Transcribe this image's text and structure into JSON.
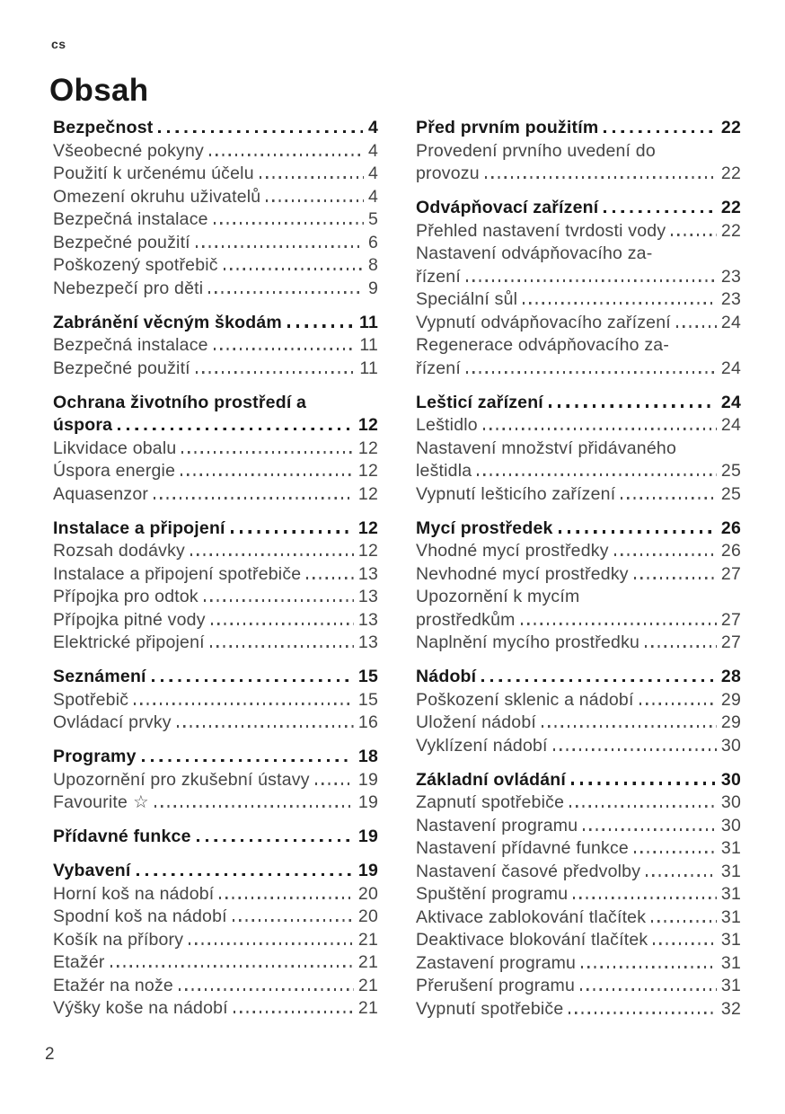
{
  "header": {
    "language_code": "cs",
    "title": "Obsah"
  },
  "footer": {
    "page_number": "2"
  },
  "colors": {
    "background": "#ffffff",
    "text_primary": "#171717",
    "text_secondary": "#454545"
  },
  "toc": {
    "columns": [
      {
        "sections": [
          {
            "title": "Bezpečnost",
            "page": "4",
            "items": [
              {
                "label": "Všeobecné pokyny",
                "page": "4"
              },
              {
                "label": "Použití k určenému účelu",
                "page": "4"
              },
              {
                "label": "Omezení okruhu uživatelů",
                "page": "4"
              },
              {
                "label": "Bezpečná instalace",
                "page": "5"
              },
              {
                "label": "Bezpečné použití",
                "page": "6"
              },
              {
                "label": "Poškozený spotřebič",
                "page": "8"
              },
              {
                "label": "Nebezpečí pro děti",
                "page": "9"
              }
            ]
          },
          {
            "title": "Zabránění věcným škodám",
            "page": "11",
            "items": [
              {
                "label": "Bezpečná instalace",
                "page": "11"
              },
              {
                "label": "Bezpečné použití",
                "page": "11"
              }
            ]
          },
          {
            "title": "Ochrana životního prostředí a",
            "title2": "úspora",
            "page": "12",
            "items": [
              {
                "label": "Likvidace obalu",
                "page": "12"
              },
              {
                "label": "Úspora energie",
                "page": "12"
              },
              {
                "label": "Aquasenzor",
                "page": "12"
              }
            ]
          },
          {
            "title": "Instalace a připojení",
            "page": "12",
            "items": [
              {
                "label": "Rozsah dodávky",
                "page": "12"
              },
              {
                "label": "Instalace a připojení spotřebiče",
                "page": "13"
              },
              {
                "label": "Přípojka pro odtok",
                "page": "13"
              },
              {
                "label": "Přípojka pitné vody",
                "page": "13"
              },
              {
                "label": "Elektrické připojení",
                "page": "13"
              }
            ]
          },
          {
            "title": "Seznámení",
            "page": "15",
            "items": [
              {
                "label": "Spotřebič",
                "page": "15"
              },
              {
                "label": "Ovládací prvky",
                "page": "16"
              }
            ]
          },
          {
            "title": "Programy",
            "page": "18",
            "items": [
              {
                "label": "Upozornění pro zkušební ústavy",
                "page": "19"
              },
              {
                "label": "Favourite",
                "icon": "☆",
                "icon_name": "star-icon",
                "page": "19"
              }
            ]
          },
          {
            "title": "Přídavné funkce",
            "page": "19",
            "items": []
          },
          {
            "title": "Vybavení",
            "page": "19",
            "items": [
              {
                "label": "Horní koš na nádobí",
                "page": "20"
              },
              {
                "label": "Spodní koš na nádobí",
                "page": "20"
              },
              {
                "label": "Košík na příbory",
                "page": "21"
              },
              {
                "label": "Etažér",
                "page": "21"
              },
              {
                "label": "Etažér na nože",
                "page": "21"
              },
              {
                "label": "Výšky koše na nádobí",
                "page": "21"
              }
            ]
          }
        ]
      },
      {
        "sections": [
          {
            "title": "Před prvním použitím",
            "page": "22",
            "items": [
              {
                "label": "Provedení prvního uvedení do",
                "label2": "provozu",
                "page": "22"
              }
            ]
          },
          {
            "title": "Odvápňovací zařízení",
            "page": "22",
            "items": [
              {
                "label": "Přehled nastavení tvrdosti vody",
                "page": "22"
              },
              {
                "label": "Nastavení odvápňovacího za-",
                "label2": "řízení",
                "page": "23"
              },
              {
                "label": "Speciální sůl",
                "page": "23"
              },
              {
                "label": "Vypnutí odvápňovacího zařízení",
                "page": "24"
              },
              {
                "label": "Regenerace odvápňovacího za-",
                "label2": "řízení",
                "page": "24"
              }
            ]
          },
          {
            "title": "Lešticí zařízení",
            "page": "24",
            "items": [
              {
                "label": "Leštidlo",
                "page": "24"
              },
              {
                "label": "Nastavení množství přidávaného",
                "label2": "leštidla",
                "page": "25"
              },
              {
                "label": "Vypnutí lešticího zařízení",
                "page": "25"
              }
            ]
          },
          {
            "title": "Mycí prostředek",
            "page": "26",
            "items": [
              {
                "label": "Vhodné mycí prostředky",
                "page": "26"
              },
              {
                "label": "Nevhodné mycí prostředky",
                "page": "27"
              },
              {
                "label": "Upozornění k mycím",
                "label2": "prostředkům",
                "page": "27"
              },
              {
                "label": "Naplnění mycího prostředku",
                "page": "27"
              }
            ]
          },
          {
            "title": "Nádobí",
            "page": "28",
            "items": [
              {
                "label": "Poškození sklenic a nádobí",
                "page": "29"
              },
              {
                "label": "Uložení nádobí",
                "page": "29"
              },
              {
                "label": "Vyklízení nádobí",
                "page": "30"
              }
            ]
          },
          {
            "title": "Základní ovládání",
            "page": "30",
            "items": [
              {
                "label": "Zapnutí spotřebiče",
                "page": "30"
              },
              {
                "label": "Nastavení programu",
                "page": "30"
              },
              {
                "label": "Nastavení přídavné funkce",
                "page": "31"
              },
              {
                "label": "Nastavení časové předvolby",
                "page": "31"
              },
              {
                "label": "Spuštění programu",
                "page": "31"
              },
              {
                "label": "Aktivace zablokování tlačítek",
                "page": "31"
              },
              {
                "label": "Deaktivace blokování tlačítek",
                "page": "31"
              },
              {
                "label": "Zastavení programu",
                "page": "31"
              },
              {
                "label": "Přerušení programu",
                "page": "31"
              },
              {
                "label": "Vypnutí spotřebiče",
                "page": "32"
              }
            ]
          }
        ]
      }
    ]
  }
}
